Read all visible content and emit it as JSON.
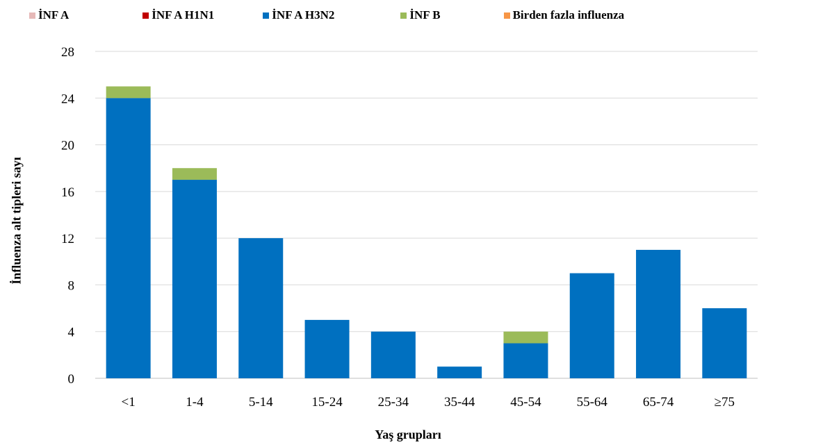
{
  "chart_data": {
    "type": "bar",
    "stacked": true,
    "title": "",
    "xlabel": "Yaş grupları",
    "ylabel": "İnfluenza alt tipleri sayı",
    "categories": [
      "<1",
      "1-4",
      "5-14",
      "15-24",
      "25-34",
      "35-44",
      "45-54",
      "55-64",
      "65-74",
      "≥75"
    ],
    "ylim": [
      0,
      28
    ],
    "yticks": [
      0,
      4,
      8,
      12,
      16,
      20,
      24,
      28
    ],
    "grid": true,
    "legend_position": "top",
    "series": [
      {
        "name": "İNF A",
        "color": "#E6B9B8",
        "values": [
          0,
          0,
          0,
          0,
          0,
          0,
          0,
          0,
          0,
          0
        ]
      },
      {
        "name": "İNF A H1N1",
        "color": "#C00000",
        "values": [
          0,
          0,
          0,
          0,
          0,
          0,
          0,
          0,
          0,
          0
        ]
      },
      {
        "name": "İNF A H3N2",
        "color": "#0070C0",
        "values": [
          24,
          17,
          12,
          5,
          4,
          1,
          3,
          9,
          11,
          6
        ]
      },
      {
        "name": "İNF B",
        "color": "#9BBB59",
        "values": [
          1,
          1,
          0,
          0,
          0,
          0,
          1,
          0,
          0,
          0
        ]
      },
      {
        "name": "Birden fazla influenza",
        "color": "#F79646",
        "values": [
          0,
          0,
          0,
          0,
          0,
          0,
          0,
          0,
          0,
          0
        ]
      }
    ]
  }
}
